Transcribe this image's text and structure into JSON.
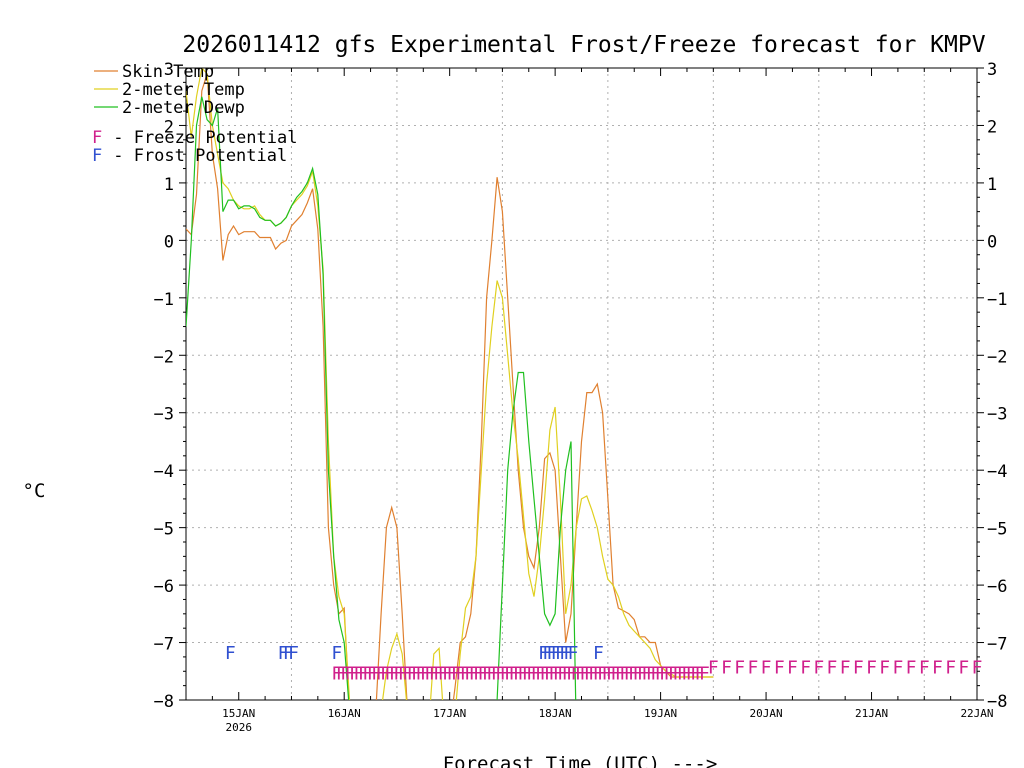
{
  "chart_data": {
    "type": "line",
    "title": "2026011412 gfs Experimental Frost/Freeze forecast for KMPV",
    "xlabel": "Forecast Time (UTC) --->",
    "ylabel": "°C",
    "ylim": [
      -8,
      3
    ],
    "xlim_days": [
      14.5,
      22.0
    ],
    "grid": true,
    "y_ticks": [
      -8,
      -7,
      -6,
      -5,
      -4,
      -3,
      -2,
      -1,
      0,
      1,
      2,
      3
    ],
    "y_tick_labels": [
      "−8",
      "−7",
      "−6",
      "−5",
      "−4",
      "−3",
      "−2",
      "−1",
      "0",
      "1",
      "2",
      "3"
    ],
    "x_ticks": [
      {
        "day": 15,
        "label": "15JAN",
        "sub": "2026"
      },
      {
        "day": 16,
        "label": "16JAN",
        "sub": ""
      },
      {
        "day": 17,
        "label": "17JAN",
        "sub": ""
      },
      {
        "day": 18,
        "label": "18JAN",
        "sub": ""
      },
      {
        "day": 19,
        "label": "19JAN",
        "sub": ""
      },
      {
        "day": 20,
        "label": "20JAN",
        "sub": ""
      },
      {
        "day": 21,
        "label": "21JAN",
        "sub": ""
      },
      {
        "day": 22,
        "label": "22JAN",
        "sub": ""
      }
    ],
    "legend": [
      {
        "name": "Skin Temp",
        "color": "#e08030"
      },
      {
        "name": "2-meter Temp",
        "color": "#e0d020"
      },
      {
        "name": "2-meter Dewp",
        "color": "#20c020"
      }
    ],
    "flag_legend": [
      {
        "mark": "F",
        "text": " - Freeze Potential",
        "color": "#d0208c"
      },
      {
        "mark": "F",
        "text": " - Frost Potential",
        "color": "#3050d0"
      }
    ],
    "series": [
      {
        "name": "Skin Temp",
        "color": "#e08030",
        "x": [
          14.5,
          14.55,
          14.6,
          14.65,
          14.7,
          14.75,
          14.8,
          14.85,
          14.9,
          14.95,
          15.0,
          15.05,
          15.1,
          15.15,
          15.2,
          15.25,
          15.3,
          15.35,
          15.4,
          15.45,
          15.5,
          15.55,
          15.6,
          15.65,
          15.7,
          15.75,
          15.8,
          15.85,
          15.9,
          15.95,
          16.0,
          16.05,
          16.1,
          16.15,
          16.2,
          16.25,
          16.3,
          16.35,
          16.4,
          16.45,
          16.5,
          16.55,
          16.6,
          16.65,
          16.7,
          16.75,
          16.8,
          16.85,
          16.9,
          16.95,
          17.0,
          17.05,
          17.1,
          17.15,
          17.2,
          17.25,
          17.3,
          17.35,
          17.4,
          17.45,
          17.5,
          17.55,
          17.6,
          17.65,
          17.7,
          17.75,
          17.8,
          17.85,
          17.9,
          17.95,
          18.0,
          18.05,
          18.1,
          18.15,
          18.2,
          18.25,
          18.3,
          18.35,
          18.4,
          18.45,
          18.5,
          18.55,
          18.6,
          18.65,
          18.7,
          18.75,
          18.8,
          18.85,
          18.9,
          18.95,
          19.0,
          19.05,
          19.1,
          19.15,
          19.2,
          19.25,
          19.3,
          19.35,
          19.4,
          19.45,
          19.5
        ],
        "values": [
          0.2,
          0.1,
          0.8,
          2.6,
          2.9,
          1.5,
          0.9,
          -0.35,
          0.1,
          0.25,
          0.1,
          0.15,
          0.15,
          0.15,
          0.05,
          0.05,
          0.05,
          -0.15,
          -0.05,
          0.0,
          0.25,
          0.35,
          0.45,
          0.65,
          0.9,
          0.2,
          -1.5,
          -5.0,
          -6.0,
          -6.5,
          -6.4,
          -8.2,
          -8.5,
          -8.5,
          -8.5,
          -8.5,
          -8.2,
          -6.5,
          -5.0,
          -4.65,
          -5.0,
          -6.5,
          -8.2,
          -8.5,
          -8.5,
          -8.5,
          -8.5,
          -8.5,
          -8.5,
          -8.5,
          -8.5,
          -7.8,
          -7.0,
          -6.9,
          -6.5,
          -5.5,
          -3.5,
          -1.0,
          0.0,
          1.1,
          0.5,
          -1.0,
          -2.5,
          -4.0,
          -5.0,
          -5.5,
          -5.7,
          -5.0,
          -3.8,
          -3.7,
          -4.0,
          -5.5,
          -7.0,
          -6.5,
          -5.0,
          -3.5,
          -2.65,
          -2.65,
          -2.5,
          -3.0,
          -4.5,
          -6.0,
          -6.4,
          -6.45,
          -6.5,
          -6.6,
          -6.9,
          -6.9,
          -7.0,
          -7.0,
          -7.4,
          -7.5,
          -7.6,
          -7.6,
          -7.6,
          -7.6,
          -7.6,
          -7.6,
          -7.6,
          -7.6,
          -7.6
        ]
      },
      {
        "name": "2-meter Temp",
        "color": "#e0d020",
        "x": [
          14.5,
          14.55,
          14.6,
          14.65,
          14.7,
          14.75,
          14.8,
          14.85,
          14.9,
          14.95,
          15.0,
          15.05,
          15.1,
          15.15,
          15.2,
          15.25,
          15.3,
          15.35,
          15.4,
          15.45,
          15.5,
          15.55,
          15.6,
          15.65,
          15.7,
          15.75,
          15.8,
          15.85,
          15.9,
          15.95,
          16.0,
          16.05,
          16.1,
          16.15,
          16.2,
          16.25,
          16.3,
          16.35,
          16.4,
          16.45,
          16.5,
          16.55,
          16.6,
          16.65,
          16.7,
          16.75,
          16.8,
          16.85,
          16.9,
          16.95,
          17.0,
          17.05,
          17.1,
          17.15,
          17.2,
          17.25,
          17.3,
          17.35,
          17.4,
          17.45,
          17.5,
          17.55,
          17.6,
          17.65,
          17.7,
          17.75,
          17.8,
          17.85,
          17.9,
          17.95,
          18.0,
          18.05,
          18.1,
          18.15,
          18.2,
          18.25,
          18.3,
          18.35,
          18.4,
          18.45,
          18.5,
          18.55,
          18.6,
          18.65,
          18.7,
          18.75,
          18.8,
          18.85,
          18.9,
          18.95,
          19.0,
          19.05,
          19.1,
          19.15,
          19.2,
          19.25,
          19.3,
          19.35,
          19.4,
          19.45,
          19.5
        ],
        "values": [
          2.6,
          1.8,
          2.5,
          3.0,
          2.9,
          2.0,
          1.5,
          1.0,
          0.9,
          0.7,
          0.6,
          0.55,
          0.55,
          0.6,
          0.45,
          0.35,
          0.35,
          0.25,
          0.3,
          0.4,
          0.6,
          0.7,
          0.8,
          0.95,
          1.2,
          0.6,
          -0.5,
          -3.5,
          -5.5,
          -6.2,
          -6.5,
          -8.0,
          -8.5,
          -8.5,
          -8.5,
          -8.5,
          -8.5,
          -8.2,
          -7.5,
          -7.1,
          -6.85,
          -7.2,
          -8.2,
          -8.5,
          -8.5,
          -8.5,
          -8.5,
          -7.2,
          -7.1,
          -8.5,
          -8.5,
          -8.3,
          -7.2,
          -6.4,
          -6.2,
          -5.5,
          -4.0,
          -2.5,
          -1.5,
          -0.7,
          -1.0,
          -2.0,
          -3.0,
          -3.8,
          -4.8,
          -5.8,
          -6.2,
          -5.5,
          -4.5,
          -3.3,
          -2.9,
          -4.5,
          -6.5,
          -6.0,
          -5.0,
          -4.5,
          -4.45,
          -4.7,
          -5.0,
          -5.5,
          -5.9,
          -6.0,
          -6.2,
          -6.5,
          -6.7,
          -6.8,
          -6.9,
          -7.0,
          -7.1,
          -7.3,
          -7.4,
          -7.5,
          -7.55,
          -7.6,
          -7.6,
          -7.6,
          -7.6,
          -7.6,
          -7.6,
          -7.6,
          -7.6
        ]
      },
      {
        "name": "2-meter Dewp",
        "color": "#20c020",
        "x": [
          14.5,
          14.55,
          14.6,
          14.65,
          14.7,
          14.75,
          14.8,
          14.85,
          14.9,
          14.95,
          15.0,
          15.05,
          15.1,
          15.15,
          15.2,
          15.25,
          15.3,
          15.35,
          15.4,
          15.45,
          15.5,
          15.55,
          15.6,
          15.65,
          15.7,
          15.75,
          15.8,
          15.85,
          15.9,
          15.95,
          16.0,
          16.05,
          16.1,
          16.15,
          16.2,
          16.25,
          16.3,
          16.35,
          16.4,
          16.45,
          16.5,
          16.55,
          16.6,
          16.65,
          16.7,
          16.75,
          16.8,
          16.85,
          16.9,
          16.95,
          17.0,
          17.05,
          17.1,
          17.15,
          17.2,
          17.25,
          17.3,
          17.35,
          17.4,
          17.45,
          17.5,
          17.55,
          17.6,
          17.65,
          17.7,
          17.75,
          17.8,
          17.85,
          17.9,
          17.95,
          18.0,
          18.05,
          18.1,
          18.15,
          18.2,
          18.25,
          18.3,
          18.35,
          18.4,
          18.45,
          18.5
        ],
        "values": [
          -1.5,
          0.0,
          2.0,
          2.5,
          2.1,
          2.0,
          2.3,
          0.5,
          0.7,
          0.7,
          0.55,
          0.6,
          0.6,
          0.55,
          0.4,
          0.35,
          0.35,
          0.25,
          0.3,
          0.4,
          0.6,
          0.75,
          0.85,
          1.0,
          1.25,
          0.8,
          -0.6,
          -4.0,
          -5.5,
          -6.6,
          -7.0,
          -8.2,
          -8.5,
          -8.5,
          -8.5,
          -8.5,
          -8.5,
          -8.5,
          -8.5,
          -8.5,
          -8.5,
          -8.5,
          -8.5,
          -8.5,
          -8.5,
          -8.5,
          -8.5,
          -8.5,
          -8.5,
          -8.5,
          -8.5,
          -8.5,
          -8.5,
          -8.5,
          -8.5,
          -8.5,
          -8.5,
          -8.5,
          -8.5,
          -8.0,
          -6.0,
          -4.0,
          -3.0,
          -2.3,
          -2.3,
          -3.5,
          -4.5,
          -5.5,
          -6.5,
          -6.7,
          -6.5,
          -5.0,
          -4.0,
          -3.5,
          -8.5,
          -8.5,
          -8.5,
          -8.5,
          -8.5,
          -8.5,
          -8.5
        ]
      }
    ],
    "frost_flags": {
      "mark": "F",
      "color": "#3050d0",
      "y_level": -7.15,
      "x": [
        14.92,
        15.42,
        15.47,
        15.52,
        15.93,
        17.89,
        17.93,
        17.97,
        18.01,
        18.05,
        18.09,
        18.13,
        18.17,
        18.41
      ]
    },
    "freeze_flags": {
      "mark": "F",
      "color": "#d0208c",
      "y_level": -7.5,
      "x_start": 15.93,
      "x_end": 19.45,
      "step": 0.042
    },
    "freeze_flags_late": {
      "mark": "F",
      "color": "#d0208c",
      "y_level": -7.4,
      "x_start": 19.5,
      "x_end": 22.0,
      "step": 0.125
    }
  }
}
